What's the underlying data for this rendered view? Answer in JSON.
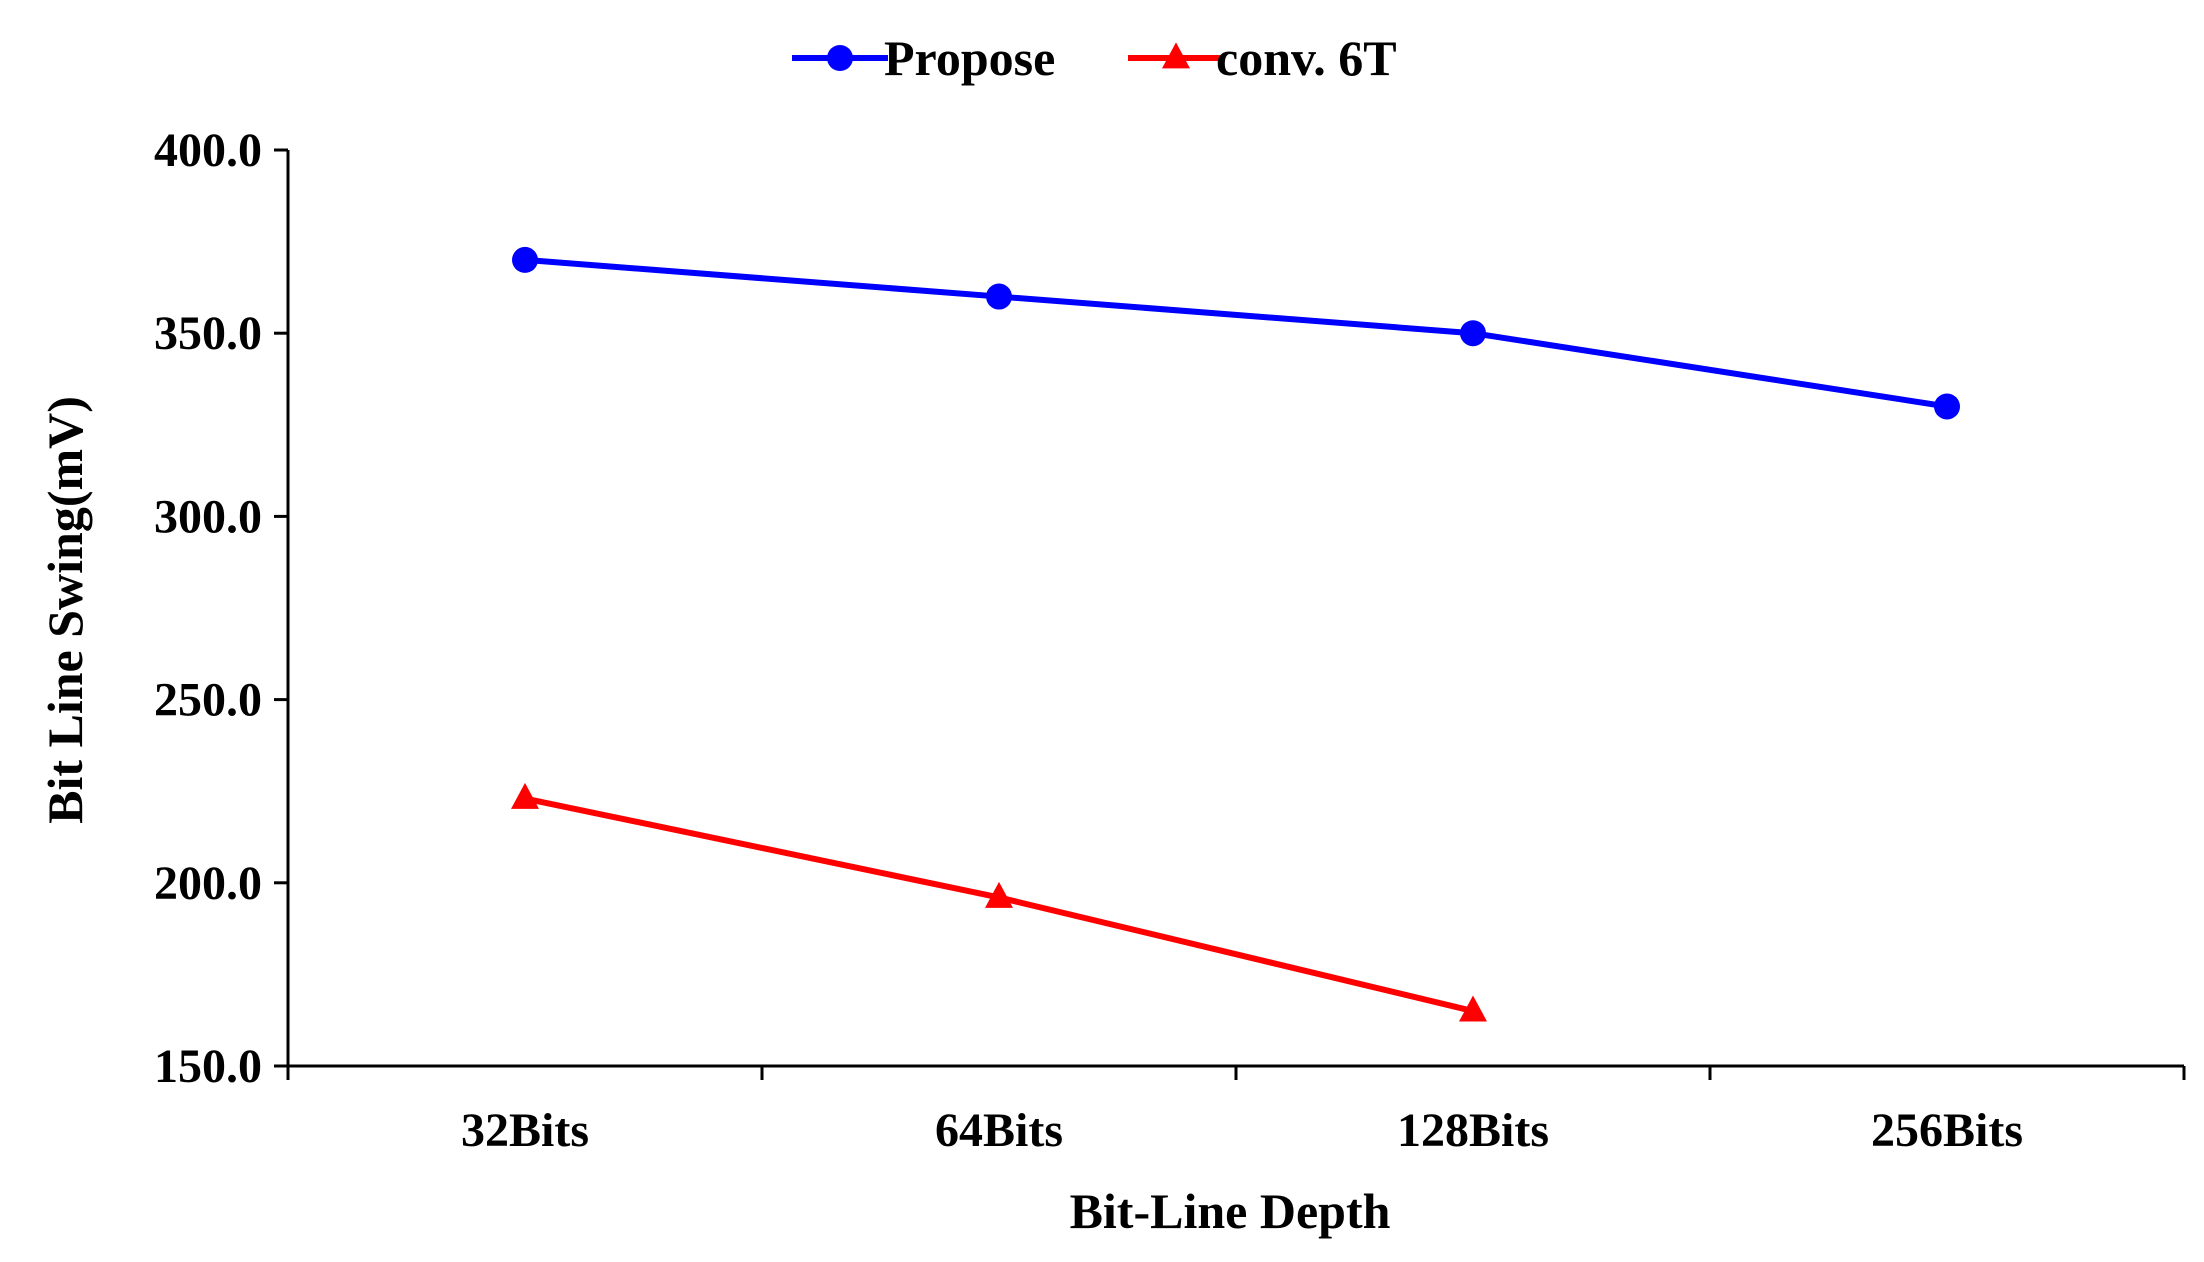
{
  "chart_data": {
    "type": "line",
    "title": "",
    "xlabel": "Bit-Line Depth",
    "ylabel": "Bit Line Swing(mV)",
    "categories": [
      "32Bits",
      "64Bits",
      "128Bits",
      "256Bits"
    ],
    "ylim": [
      150.0,
      400.0
    ],
    "yticks": [
      "150.0",
      "200.0",
      "250.0",
      "300.0",
      "350.0",
      "400.0"
    ],
    "ytick_values": [
      150,
      200,
      250,
      300,
      350,
      400
    ],
    "grid": false,
    "legend_position": "top-center",
    "series": [
      {
        "name": "Propose",
        "color": "#0000ff",
        "marker": "circle",
        "values": [
          370,
          360,
          350,
          330
        ]
      },
      {
        "name": "conv. 6T",
        "color": "#ff0000",
        "marker": "triangle",
        "values": [
          223,
          196,
          165,
          null
        ]
      }
    ]
  }
}
